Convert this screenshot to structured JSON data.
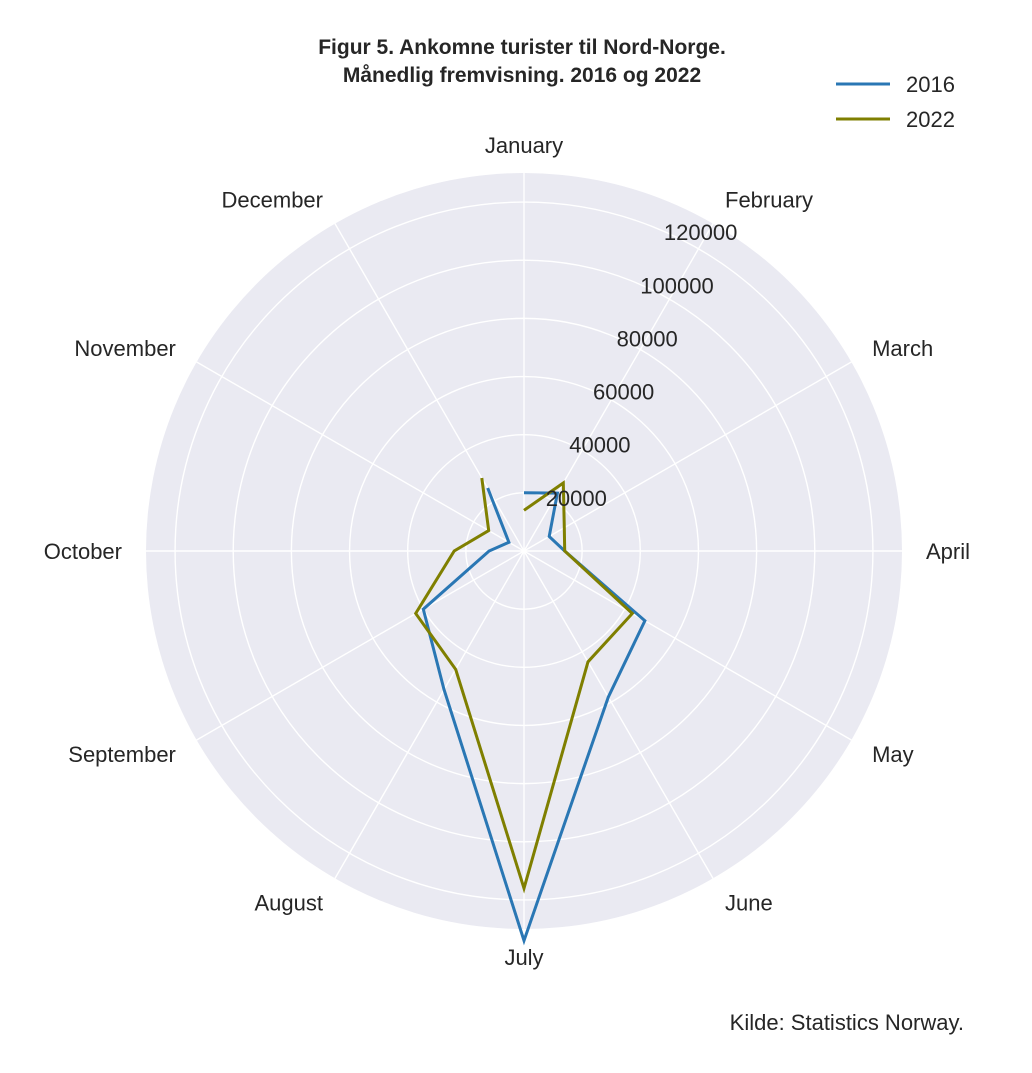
{
  "chart_data": {
    "type": "line",
    "subtype": "polar",
    "title_line1": "Figur 5. Ankomne turister til Nord-Norge.",
    "title_line2": "Månedlig fremvisning. 2016 og 2022",
    "categories": [
      "January",
      "February",
      "March",
      "April",
      "May",
      "June",
      "July",
      "August",
      "September",
      "October",
      "November",
      "December"
    ],
    "radial_ticks": [
      20000,
      40000,
      60000,
      80000,
      100000,
      120000
    ],
    "radial_tick_labels": [
      "20000",
      "40000",
      "60000",
      "80000",
      "100000",
      "120000"
    ],
    "rlim": [
      0,
      130000
    ],
    "grid": true,
    "legend_position": "top-right",
    "series": [
      {
        "name": "2016",
        "color": "#2a77b4",
        "values": [
          20000,
          23000,
          10000,
          14000,
          48000,
          58000,
          134000,
          55000,
          40000,
          12000,
          6000,
          25000
        ]
      },
      {
        "name": "2022",
        "color": "#7f7f00",
        "values": [
          14000,
          27000,
          16000,
          14000,
          43000,
          44000,
          116000,
          47000,
          43000,
          24000,
          14000,
          29000
        ]
      }
    ],
    "source": "Kilde: Statistics Norway."
  }
}
